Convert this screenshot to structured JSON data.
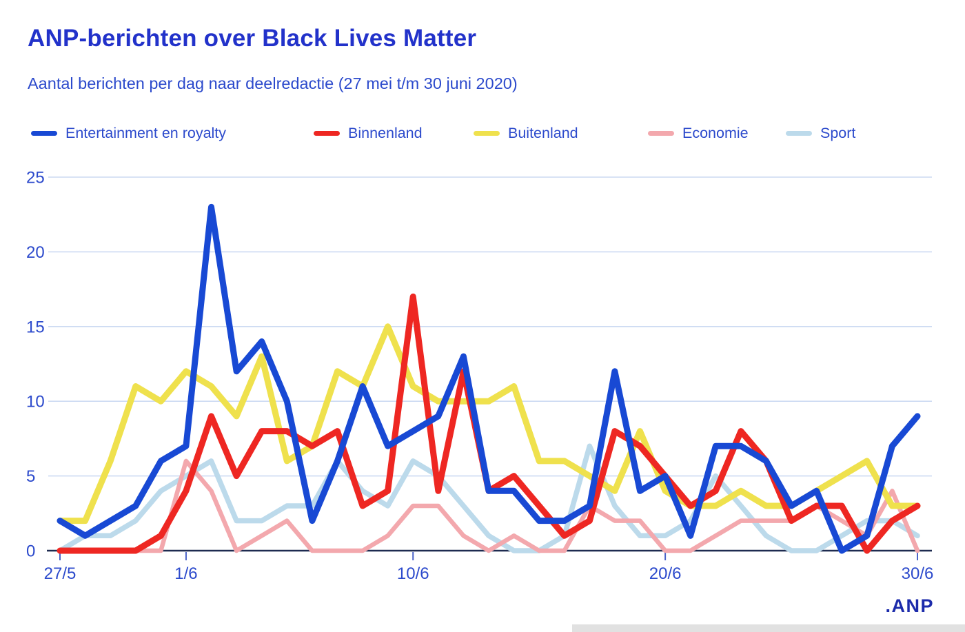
{
  "header": {
    "title": "ANP-berichten over Black Lives Matter",
    "subtitle": "Aantal berichten per dag naar deelredactie (27 mei t/m 30 juni 2020)"
  },
  "legend": {
    "items": [
      {
        "label": "Entertainment en royalty",
        "color": "#1849d4"
      },
      {
        "label": "Binnenland",
        "color": "#ee2722"
      },
      {
        "label": "Buitenland",
        "color": "#efe14d"
      },
      {
        "label": "Economie",
        "color": "#f3a8ad"
      },
      {
        "label": "Sport",
        "color": "#bcdaeb"
      }
    ]
  },
  "chart_data": {
    "type": "line",
    "title": "ANP-berichten over Black Lives Matter",
    "xlabel": "",
    "ylabel": "",
    "ylim": [
      0,
      25
    ],
    "yticks": [
      0,
      5,
      10,
      15,
      20,
      25
    ],
    "grid": "horizontal",
    "legend_position": "top",
    "x_labels": [
      "27/5",
      "28/5",
      "29/5",
      "30/5",
      "31/5",
      "1/6",
      "2/6",
      "3/6",
      "4/6",
      "5/6",
      "6/6",
      "7/6",
      "8/6",
      "9/6",
      "10/6",
      "11/6",
      "12/6",
      "13/6",
      "14/6",
      "15/6",
      "16/6",
      "17/6",
      "18/6",
      "19/6",
      "20/6",
      "21/6",
      "22/6",
      "23/6",
      "24/6",
      "25/6",
      "26/6",
      "27/6",
      "28/6",
      "29/6",
      "30/6"
    ],
    "x_ticks": [
      {
        "label": "27/5",
        "index": 0
      },
      {
        "label": "1/6",
        "index": 5
      },
      {
        "label": "10/6",
        "index": 14
      },
      {
        "label": "20/6",
        "index": 24
      },
      {
        "label": "30/6",
        "index": 34
      }
    ],
    "series": [
      {
        "name": "Entertainment en royalty",
        "color": "#1849d4",
        "stroke_width": 9,
        "values": [
          2,
          1,
          2,
          3,
          6,
          7,
          23,
          12,
          14,
          10,
          2,
          6,
          11,
          7,
          8,
          9,
          13,
          4,
          4,
          2,
          2,
          3,
          12,
          4,
          5,
          1,
          7,
          7,
          6,
          3,
          4,
          0,
          1,
          7,
          9
        ]
      },
      {
        "name": "Binnenland",
        "color": "#ee2722",
        "stroke_width": 9,
        "values": [
          0,
          0,
          0,
          0,
          1,
          4,
          9,
          5,
          8,
          8,
          7,
          8,
          3,
          4,
          17,
          4,
          12,
          4,
          5,
          3,
          1,
          2,
          8,
          7,
          5,
          3,
          4,
          8,
          6,
          2,
          3,
          3,
          0,
          2,
          3
        ]
      },
      {
        "name": "Buitenland",
        "color": "#efe14d",
        "stroke_width": 9,
        "values": [
          2,
          2,
          6,
          11,
          10,
          12,
          11,
          9,
          13,
          6,
          7,
          12,
          11,
          15,
          11,
          10,
          10,
          10,
          11,
          6,
          6,
          5,
          4,
          8,
          4,
          3,
          3,
          4,
          3,
          3,
          4,
          5,
          6,
          3,
          3
        ]
      },
      {
        "name": "Economie",
        "color": "#f3a8ad",
        "stroke_width": 6.5,
        "values": [
          0,
          0,
          0,
          0,
          0,
          6,
          4,
          0,
          1,
          2,
          0,
          0,
          0,
          1,
          3,
          3,
          1,
          0,
          1,
          0,
          0,
          3,
          2,
          2,
          0,
          0,
          1,
          2,
          2,
          2,
          3,
          2,
          1,
          4,
          0
        ]
      },
      {
        "name": "Sport",
        "color": "#bcdaeb",
        "stroke_width": 7.5,
        "values": [
          0,
          1,
          1,
          2,
          4,
          5,
          6,
          2,
          2,
          3,
          3,
          6,
          4,
          3,
          6,
          5,
          3,
          1,
          0,
          0,
          1,
          7,
          3,
          1,
          1,
          2,
          5,
          3,
          1,
          0,
          0,
          1,
          2,
          2,
          1
        ]
      }
    ]
  },
  "footer": {
    "logo_text": ".ANP"
  },
  "colors": {
    "title": "#2232ca",
    "subtitle": "#2c4acc",
    "axis_label": "#2c4acc",
    "gridline": "#ccdaf2",
    "baseline": "#1e2b50",
    "tick": "#4a63c8",
    "logo": "#1c2bab"
  }
}
